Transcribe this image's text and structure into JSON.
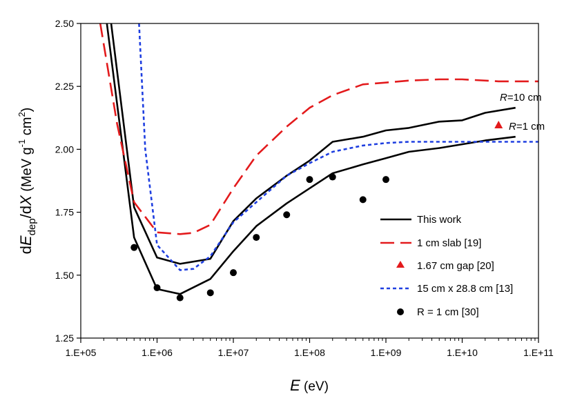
{
  "chart_data": {
    "type": "line",
    "xscale": "log",
    "xlim": [
      100000,
      100000000000
    ],
    "ylim": [
      1.25,
      2.5
    ],
    "ylabel": {
      "d1": "d",
      "E": "E",
      "sub": "dep",
      "mid": "/d",
      "X": "X",
      "unit_open": " (MeV g",
      "sup1": "-1",
      "unit_mid": " cm",
      "sup2": "2",
      "unit_close": ")"
    },
    "xlabel": {
      "E": "E",
      "unit": " (eV)"
    },
    "xticks": [
      {
        "value": 100000,
        "label": "1.E+05"
      },
      {
        "value": 1000000,
        "label": "1.E+06"
      },
      {
        "value": 10000000,
        "label": "1.E+07"
      },
      {
        "value": 100000000,
        "label": "1.E+08"
      },
      {
        "value": 1000000000,
        "label": "1.E+09"
      },
      {
        "value": 10000000000,
        "label": "1.E+10"
      },
      {
        "value": 100000000000,
        "label": "1.E+11"
      }
    ],
    "yticks": [
      {
        "value": 1.25,
        "label": "1.25"
      },
      {
        "value": 1.5,
        "label": "1.50"
      },
      {
        "value": 1.75,
        "label": "1.75"
      },
      {
        "value": 2.0,
        "label": "2.00"
      },
      {
        "value": 2.25,
        "label": "2.25"
      },
      {
        "value": 2.5,
        "label": "2.50"
      }
    ],
    "series": [
      {
        "name": "This work",
        "kind": "line",
        "color": "#000000",
        "dash": "",
        "label_ref": "R=10 cm",
        "points": [
          [
            250000,
            2.5
          ],
          [
            500000,
            1.77
          ],
          [
            1000000,
            1.57
          ],
          [
            2000000,
            1.545
          ],
          [
            5000000,
            1.565
          ],
          [
            10000000,
            1.715
          ],
          [
            20000000,
            1.805
          ],
          [
            50000000,
            1.895
          ],
          [
            100000000,
            1.955
          ],
          [
            200000000,
            2.03
          ],
          [
            500000000,
            2.05
          ],
          [
            1000000000,
            2.075
          ],
          [
            2000000000,
            2.085
          ],
          [
            5000000000,
            2.11
          ],
          [
            10000000000,
            2.115
          ],
          [
            20000000000,
            2.145
          ],
          [
            50000000000,
            2.165
          ]
        ]
      },
      {
        "name": "This work",
        "kind": "line",
        "color": "#000000",
        "dash": "",
        "label_ref": "R=1 cm",
        "points": [
          [
            220000,
            2.5
          ],
          [
            500000,
            1.65
          ],
          [
            1000000,
            1.445
          ],
          [
            2000000,
            1.425
          ],
          [
            5000000,
            1.485
          ],
          [
            10000000,
            1.595
          ],
          [
            20000000,
            1.695
          ],
          [
            50000000,
            1.785
          ],
          [
            100000000,
            1.845
          ],
          [
            200000000,
            1.905
          ],
          [
            500000000,
            1.94
          ],
          [
            1000000000,
            1.965
          ],
          [
            2000000000,
            1.99
          ],
          [
            5000000000,
            2.005
          ],
          [
            10000000000,
            2.02
          ],
          [
            20000000000,
            2.035
          ],
          [
            50000000000,
            2.05
          ]
        ]
      },
      {
        "name": "1 cm slab [19]",
        "kind": "line",
        "color": "#e31a1c",
        "dash": "20 9",
        "points": [
          [
            180000,
            2.5
          ],
          [
            300000,
            2.1
          ],
          [
            500000,
            1.79
          ],
          [
            1000000,
            1.67
          ],
          [
            2000000,
            1.663
          ],
          [
            3000000,
            1.668
          ],
          [
            5000000,
            1.7
          ],
          [
            10000000,
            1.845
          ],
          [
            20000000,
            1.975
          ],
          [
            50000000,
            2.09
          ],
          [
            100000000,
            2.165
          ],
          [
            200000000,
            2.215
          ],
          [
            500000000,
            2.258
          ],
          [
            1000000000,
            2.265
          ],
          [
            2000000000,
            2.273
          ],
          [
            5000000000,
            2.278
          ],
          [
            10000000000,
            2.278
          ],
          [
            30000000000,
            2.27
          ],
          [
            100000000000,
            2.27
          ]
        ]
      },
      {
        "name": "15 cm x 28.8 cm [13]",
        "kind": "line",
        "color": "#1f3fe0",
        "dash": "5 4",
        "points": [
          [
            580000,
            2.5
          ],
          [
            700000,
            2.0
          ],
          [
            1000000,
            1.62
          ],
          [
            2000000,
            1.52
          ],
          [
            3000000,
            1.525
          ],
          [
            5000000,
            1.575
          ],
          [
            10000000,
            1.71
          ],
          [
            20000000,
            1.79
          ],
          [
            50000000,
            1.895
          ],
          [
            100000000,
            1.945
          ],
          [
            200000000,
            1.99
          ],
          [
            500000000,
            2.015
          ],
          [
            1000000000,
            2.025
          ],
          [
            2000000000,
            2.03
          ],
          [
            5000000000,
            2.03
          ],
          [
            10000000000,
            2.03
          ],
          [
            30000000000,
            2.03
          ],
          [
            100000000000,
            2.03
          ]
        ]
      },
      {
        "name": "1.67 cm gap [20]",
        "kind": "triangle",
        "color": "#e31a1c",
        "points": [
          [
            30000000000,
            2.097
          ]
        ]
      },
      {
        "name": "R = 1 cm [30]",
        "kind": "circle",
        "color": "#000000",
        "points": [
          [
            500000,
            1.61
          ],
          [
            1000000,
            1.45
          ],
          [
            2000000,
            1.41
          ],
          [
            5000000,
            1.43
          ],
          [
            10000000,
            1.51
          ],
          [
            20000000,
            1.65
          ],
          [
            50000000,
            1.74
          ],
          [
            100000000,
            1.88
          ],
          [
            200000000,
            1.89
          ],
          [
            500000000,
            1.8
          ],
          [
            1000000000,
            1.88
          ]
        ]
      }
    ],
    "legend": {
      "placement": "bottom-right",
      "entries": [
        "This work",
        "1 cm slab [19]",
        "1.67 cm gap [20]",
        "15 cm x 28.8 cm [13]",
        "R = 1 cm [30]"
      ]
    },
    "annotations": [
      {
        "id": "r10",
        "R": "R",
        "text": "=10 cm"
      },
      {
        "id": "r1",
        "R": "R",
        "text": "=1 cm"
      }
    ]
  }
}
